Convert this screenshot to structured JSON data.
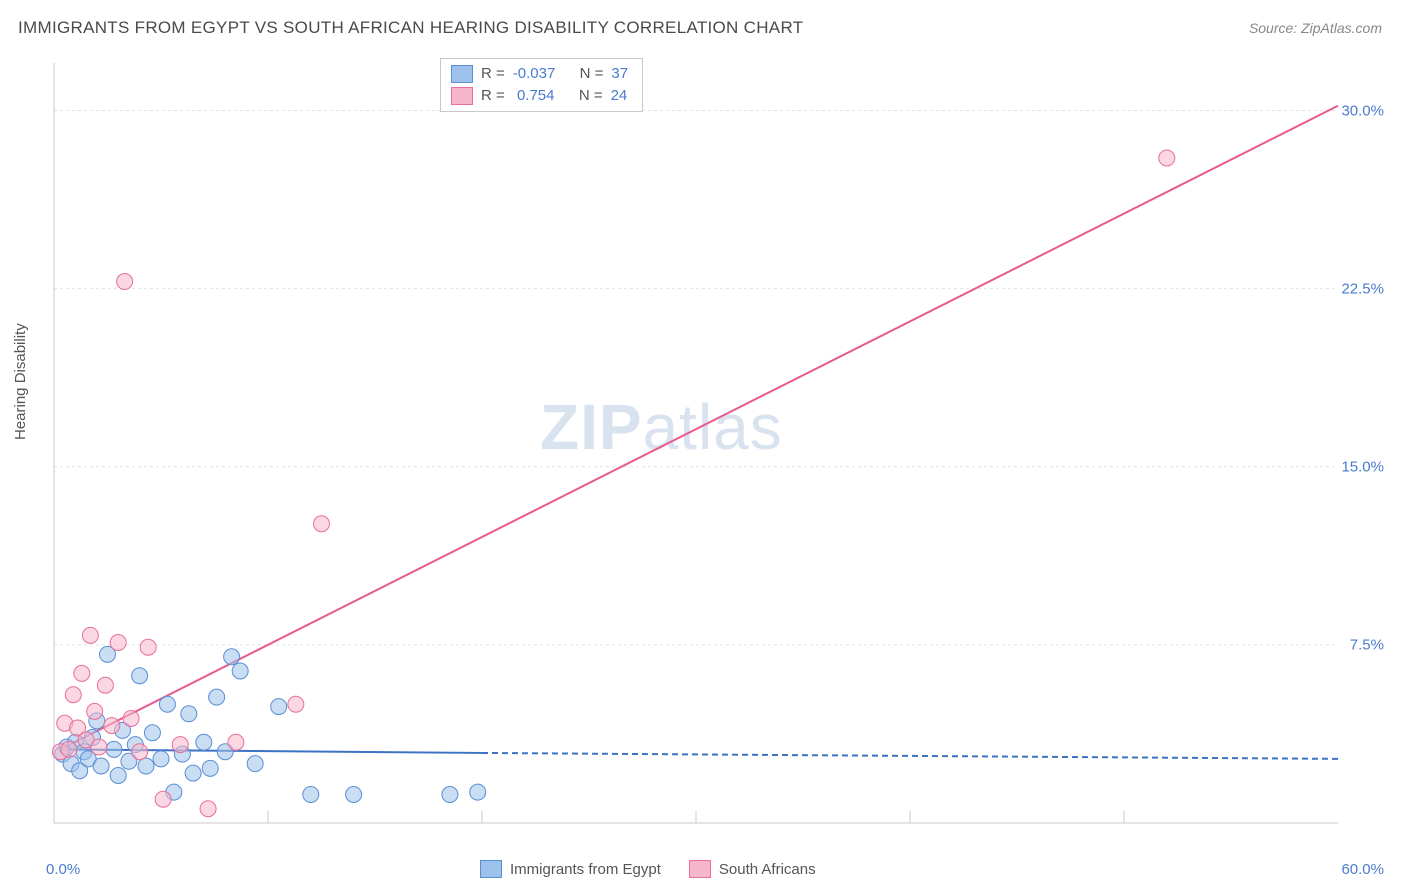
{
  "title": "IMMIGRANTS FROM EGYPT VS SOUTH AFRICAN HEARING DISABILITY CORRELATION CHART",
  "source": "Source: ZipAtlas.com",
  "watermark": {
    "part1": "ZIP",
    "part2": "atlas"
  },
  "ylabel": "Hearing Disability",
  "chart": {
    "type": "scatter",
    "xlim": [
      0,
      60
    ],
    "ylim": [
      0,
      32
    ],
    "xticks": [
      0,
      10,
      20,
      30,
      40,
      50,
      60
    ],
    "yticks": [
      7.5,
      15.0,
      22.5,
      30.0
    ],
    "ytick_labels": [
      "7.5%",
      "15.0%",
      "22.5%",
      "30.0%"
    ],
    "x_min_label": "0.0%",
    "x_max_label": "60.0%",
    "background_color": "#ffffff",
    "grid_color": "#e3e3e3",
    "grid_style": "dashed",
    "axis_color": "#c8c8c8",
    "axis_label_color": "#4a7bd0",
    "series": [
      {
        "name": "Immigrants from Egypt",
        "legend_label": "Immigrants from Egypt",
        "R": "-0.037",
        "N": "37",
        "color_fill": "#9cc1ea",
        "color_stroke": "#5a8fd6",
        "fill_opacity": 0.55,
        "marker": "circle",
        "marker_radius": 8,
        "trend": {
          "x1": 0.3,
          "y1": 3.1,
          "x2": 20.0,
          "y2": 2.95,
          "ext_x2": 60.0,
          "ext_y2": 2.7,
          "color": "#3b72c4",
          "width": 2
        },
        "points": [
          [
            0.4,
            2.9
          ],
          [
            0.6,
            3.2
          ],
          [
            0.8,
            2.5
          ],
          [
            1.0,
            3.4
          ],
          [
            1.2,
            2.2
          ],
          [
            1.4,
            3.0
          ],
          [
            1.6,
            2.7
          ],
          [
            1.8,
            3.6
          ],
          [
            2.0,
            4.3
          ],
          [
            2.2,
            2.4
          ],
          [
            2.5,
            7.1
          ],
          [
            2.8,
            3.1
          ],
          [
            3.0,
            2.0
          ],
          [
            3.2,
            3.9
          ],
          [
            3.5,
            2.6
          ],
          [
            3.8,
            3.3
          ],
          [
            4.0,
            6.2
          ],
          [
            4.3,
            2.4
          ],
          [
            4.6,
            3.8
          ],
          [
            5.0,
            2.7
          ],
          [
            5.3,
            5.0
          ],
          [
            5.6,
            1.3
          ],
          [
            6.0,
            2.9
          ],
          [
            6.3,
            4.6
          ],
          [
            6.5,
            2.1
          ],
          [
            7.0,
            3.4
          ],
          [
            7.3,
            2.3
          ],
          [
            7.6,
            5.3
          ],
          [
            8.0,
            3.0
          ],
          [
            8.3,
            7.0
          ],
          [
            8.7,
            6.4
          ],
          [
            9.4,
            2.5
          ],
          [
            10.5,
            4.9
          ],
          [
            12.0,
            1.2
          ],
          [
            14.0,
            1.2
          ],
          [
            18.5,
            1.2
          ],
          [
            19.8,
            1.3
          ]
        ]
      },
      {
        "name": "South Africans",
        "legend_label": "South Africans",
        "R": "0.754",
        "N": "24",
        "color_fill": "#f6b7cb",
        "color_stroke": "#e86f9a",
        "fill_opacity": 0.55,
        "marker": "circle",
        "marker_radius": 8,
        "trend": {
          "x1": 0.3,
          "y1": 3.1,
          "x2": 60.0,
          "y2": 30.2,
          "color": "#e85a8c",
          "width": 2
        },
        "points": [
          [
            0.3,
            3.0
          ],
          [
            0.5,
            4.2
          ],
          [
            0.7,
            3.1
          ],
          [
            0.9,
            5.4
          ],
          [
            1.1,
            4.0
          ],
          [
            1.3,
            6.3
          ],
          [
            1.5,
            3.5
          ],
          [
            1.7,
            7.9
          ],
          [
            1.9,
            4.7
          ],
          [
            2.1,
            3.2
          ],
          [
            2.4,
            5.8
          ],
          [
            2.7,
            4.1
          ],
          [
            3.0,
            7.6
          ],
          [
            3.3,
            22.8
          ],
          [
            3.6,
            4.4
          ],
          [
            4.0,
            3.0
          ],
          [
            4.4,
            7.4
          ],
          [
            5.1,
            1.0
          ],
          [
            5.9,
            3.3
          ],
          [
            7.2,
            0.6
          ],
          [
            8.5,
            3.4
          ],
          [
            11.3,
            5.0
          ],
          [
            12.5,
            12.6
          ],
          [
            52.0,
            28.0
          ]
        ]
      }
    ],
    "legend_top": {
      "R_label": "R =",
      "N_label": "N ="
    }
  }
}
